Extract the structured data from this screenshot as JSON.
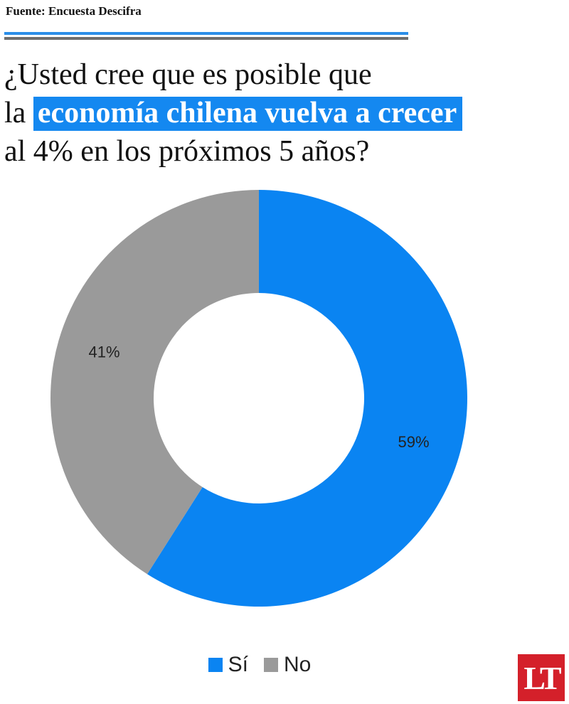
{
  "header": {
    "source": "Fuente: Encuesta Descifra",
    "title_line1": "¿Usted cree que es posible que",
    "title_line2_prefix": "la ",
    "title_line2_highlight": "economía chilena vuelva a crecer",
    "title_line3": "al 4% en los próximos 5 años?"
  },
  "colors": {
    "si": "#0a84f2",
    "no": "#9a9a9a",
    "highlight": "#1488f0",
    "logo": "#d4202a"
  },
  "chart_data": {
    "type": "pie",
    "donut": true,
    "title": "¿Usted cree que es posible que la economía chilena vuelva a crecer al 4% en los próximos 5 años?",
    "slices": [
      {
        "label": "Sí",
        "value": 59,
        "display": "59%",
        "color": "#0a84f2"
      },
      {
        "label": "No",
        "value": 41,
        "display": "41%",
        "color": "#9a9a9a"
      }
    ],
    "legend_position": "bottom"
  },
  "logo": {
    "text": "LT"
  }
}
